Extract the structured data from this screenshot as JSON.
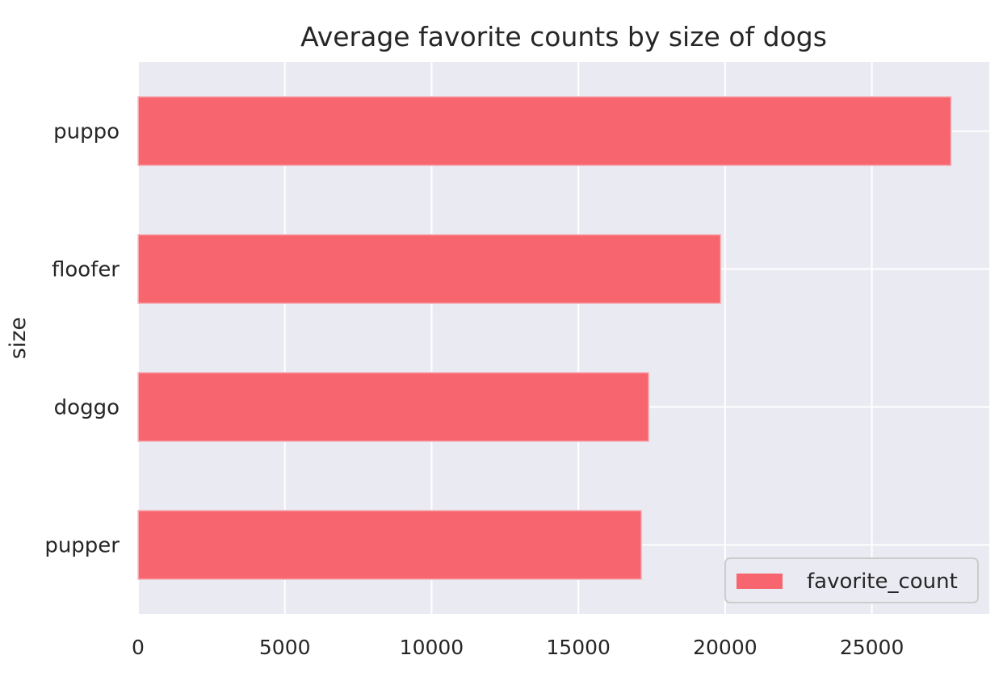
{
  "chart_data": {
    "type": "bar",
    "orientation": "horizontal",
    "title": "Average favorite counts by size of dogs",
    "xlabel": "",
    "ylabel": "size",
    "categories": [
      "puppo",
      "floofer",
      "doggo",
      "pupper"
    ],
    "series": [
      {
        "name": "favorite_count",
        "values": [
          27700,
          19850,
          17400,
          17150
        ],
        "color": "#f7656f"
      }
    ],
    "xlim": [
      0,
      29000
    ],
    "xticks": [
      0,
      5000,
      10000,
      15000,
      20000,
      25000
    ],
    "xtick_labels": [
      "0",
      "5000",
      "10000",
      "15000",
      "20000",
      "25000"
    ],
    "grid": true,
    "legend": {
      "placement": "bottom-right",
      "entries": [
        "favorite_count"
      ]
    },
    "style": {
      "background": "#eaeaf2",
      "grid_color": "#ffffff",
      "text_color": "#262626",
      "legend_border": "#cccccc"
    }
  }
}
